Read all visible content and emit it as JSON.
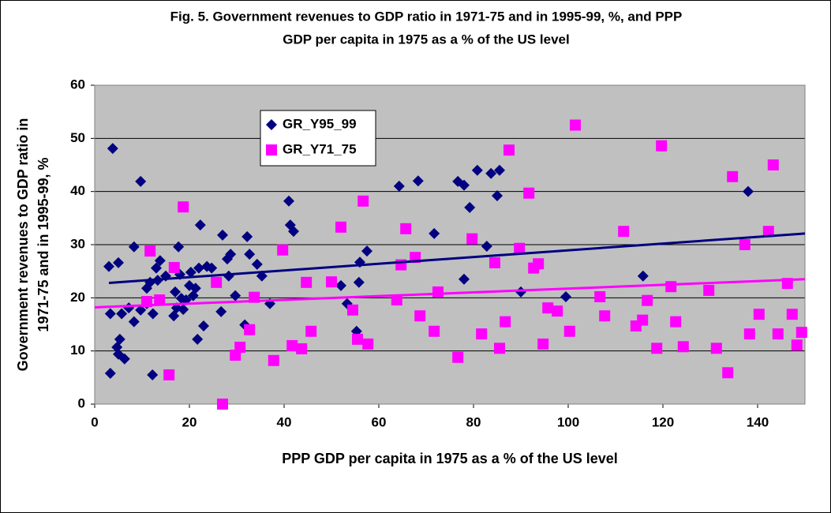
{
  "chart_data": {
    "type": "scatter",
    "title_lines": [
      "Fig. 5. Government revenues to GDP ratio in 1971-75 and in 1995-99, %, and PPP",
      "GDP per capita in 1975 as a % of the US level"
    ],
    "xlabel": "PPP GDP per capita in 1975 as a % of the US level",
    "ylabel_lines": [
      "Government revenues to GDP ratio in",
      "1971-75 and in 1995-99, %"
    ],
    "xlim": [
      0,
      150
    ],
    "xticks": [
      0,
      20,
      40,
      60,
      80,
      100,
      120,
      140
    ],
    "ylim": [
      0,
      60
    ],
    "yticks": [
      0,
      10,
      20,
      30,
      40,
      50,
      60
    ],
    "grid": true,
    "series": [
      {
        "name": "GR_Y95_99",
        "color": "#000080",
        "marker": "diamond",
        "x": [
          3.8,
          3,
          3.3,
          3.3,
          5,
          4.7,
          5.3,
          5,
          5.7,
          6.3,
          7.2,
          8.3,
          8.3,
          9.7,
          9.7,
          11,
          11,
          11.7,
          12.3,
          12.2,
          13,
          13.3,
          13.8,
          15,
          16.7,
          17,
          17.3,
          17.7,
          18,
          18.3,
          18.7,
          19.3,
          20,
          20.3,
          20.8,
          21.3,
          21.7,
          22,
          22.3,
          23,
          23.7,
          24.7,
          26.7,
          27,
          28,
          28.3,
          28.7,
          29.7,
          31.7,
          32.2,
          32.7,
          34.3,
          35.3,
          37,
          41,
          41.3,
          42,
          52,
          53.3,
          55.3,
          55.8,
          56,
          57.5,
          64.3,
          68.3,
          71.7,
          76.7,
          78,
          78,
          79.2,
          80.8,
          82.8,
          83.7,
          85,
          85.5,
          90,
          99.5,
          115.8,
          138
        ],
        "values": [
          48.1,
          25.9,
          17,
          5.8,
          26.6,
          10.7,
          12.2,
          9.4,
          17,
          8.5,
          18.1,
          29.6,
          15.5,
          41.9,
          17.7,
          21.8,
          18.9,
          22.9,
          17,
          5.5,
          25.6,
          23.3,
          27,
          24.1,
          16.6,
          21.1,
          18.1,
          29.6,
          24.4,
          19.9,
          17.8,
          19.6,
          22.3,
          24.8,
          20.4,
          21.8,
          12.2,
          25.6,
          33.7,
          14.7,
          25.9,
          25.6,
          17.4,
          31.8,
          27.3,
          24.1,
          28.2,
          20.4,
          14.9,
          31.5,
          28.2,
          26.3,
          24.1,
          18.9,
          38.2,
          33.7,
          32.5,
          22.3,
          18.9,
          13.7,
          22.9,
          26.7,
          28.8,
          41,
          42,
          32.1,
          41.9,
          41.2,
          23.5,
          37,
          44,
          29.7,
          43.4,
          39.2,
          44,
          21.1,
          20.2,
          24.1,
          40
        ],
        "trend_x": [
          3,
          150
        ],
        "trend_y": [
          22.8,
          32.1
        ]
      },
      {
        "name": "GR_Y71_75",
        "color": "#ff00ff",
        "marker": "square",
        "x": [
          18.7,
          11.7,
          11,
          13.7,
          15.7,
          16.8,
          25.7,
          27,
          29.7,
          30.7,
          32.7,
          33.7,
          37.8,
          39.7,
          41.7,
          43.7,
          44.7,
          45.7,
          50,
          52,
          54.5,
          55.5,
          56.7,
          57.7,
          63.8,
          64.7,
          65.7,
          67.7,
          68.7,
          71.7,
          72.5,
          76.7,
          79.7,
          81.7,
          84.5,
          85.5,
          86.7,
          87.5,
          89.7,
          91.7,
          92.7,
          93.7,
          94.7,
          95.7,
          97.7,
          100.3,
          101.5,
          106.7,
          107.7,
          111.7,
          114.3,
          115.7,
          116.7,
          118.7,
          119.7,
          121.7,
          122.7,
          124.3,
          129.7,
          131.3,
          133.7,
          134.7,
          137.3,
          138.3,
          140.3,
          142.3,
          143.3,
          144.3,
          146.3,
          147.3,
          148.3,
          149.3
        ],
        "values": [
          37.1,
          28.8,
          19.3,
          19.6,
          5.5,
          25.7,
          22.9,
          0,
          9.2,
          10.7,
          14,
          20.1,
          8.2,
          29,
          11,
          10.4,
          22.9,
          13.7,
          23,
          33.3,
          17.7,
          12.2,
          38.2,
          11.3,
          19.6,
          26.2,
          33,
          27.6,
          16.6,
          13.7,
          21.1,
          8.8,
          31.1,
          13.2,
          26.6,
          10.5,
          15.5,
          47.8,
          29.3,
          39.7,
          25.6,
          26.4,
          11.3,
          18.1,
          17.5,
          13.7,
          52.5,
          20.2,
          16.6,
          32.5,
          14.7,
          15.8,
          19.5,
          10.5,
          48.6,
          22.1,
          15.5,
          10.8,
          21.4,
          10.5,
          5.9,
          42.8,
          30,
          13.2,
          16.9,
          32.5,
          45,
          13.2,
          22.7,
          16.9,
          11.1,
          13.5
        ],
        "trend_x": [
          0,
          150
        ],
        "trend_y": [
          18.2,
          23.5
        ]
      }
    ]
  }
}
